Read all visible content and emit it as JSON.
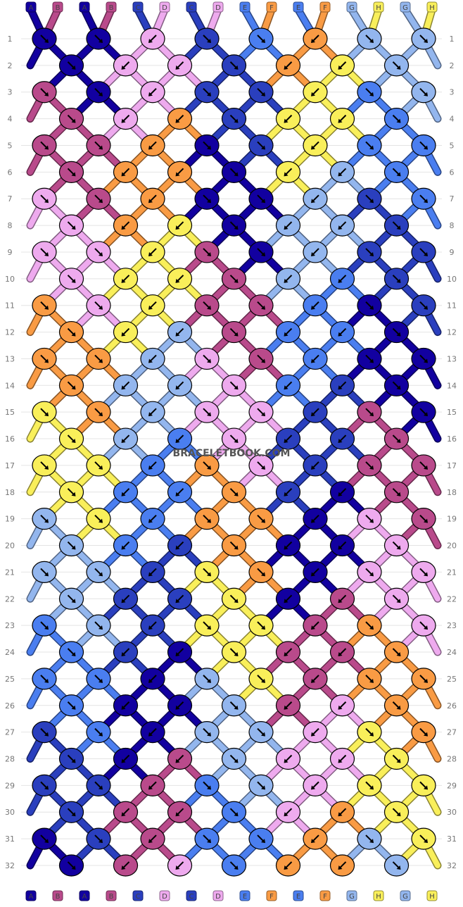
{
  "watermark": "BRACELETBOOK.COM",
  "string_ids": [
    "A",
    "B",
    "A",
    "B",
    "C",
    "D",
    "C",
    "D",
    "E",
    "F",
    "E",
    "F",
    "G",
    "H",
    "G",
    "H"
  ],
  "colors": {
    "A": "#1200a0",
    "B": "#b94a8b",
    "C": "#2a3fbe",
    "D": "#eeaaee",
    "E": "#4a7ef0",
    "F": "#f99b44",
    "G": "#93b6ee",
    "H": "#f9ef5a"
  },
  "row_labels": [
    "1",
    "2",
    "3",
    "4",
    "5",
    "6",
    "7",
    "8",
    "9",
    "10",
    "11",
    "12",
    "13",
    "14",
    "15",
    "16",
    "17",
    "18",
    "19",
    "20",
    "21",
    "22",
    "23",
    "24",
    "25",
    "26",
    "27",
    "28",
    "29",
    "30",
    "31",
    "32"
  ],
  "knot_colors": [
    [
      "A",
      "A",
      "D",
      "C",
      "E",
      "F",
      "G",
      "G"
    ],
    [
      "A",
      "D",
      "D",
      "C",
      "F",
      "H",
      "G"
    ],
    [
      "B",
      "A",
      "D",
      "C",
      "C",
      "H",
      "E",
      "G"
    ],
    [
      "B",
      "D",
      "F",
      "C",
      "H",
      "H",
      "E"
    ],
    [
      "B",
      "B",
      "F",
      "A",
      "C",
      "H",
      "E",
      "E"
    ],
    [
      "B",
      "F",
      "F",
      "A",
      "H",
      "G",
      "E"
    ],
    [
      "D",
      "B",
      "F",
      "A",
      "A",
      "G",
      "C",
      "E"
    ],
    [
      "D",
      "F",
      "H",
      "A",
      "G",
      "G",
      "C"
    ],
    [
      "D",
      "D",
      "H",
      "B",
      "A",
      "G",
      "C",
      "C"
    ],
    [
      "D",
      "H",
      "H",
      "B",
      "G",
      "E",
      "C"
    ],
    [
      "F",
      "D",
      "H",
      "B",
      "B",
      "E",
      "A",
      "C"
    ],
    [
      "F",
      "H",
      "G",
      "B",
      "E",
      "E",
      "A"
    ],
    [
      "F",
      "F",
      "G",
      "D",
      "B",
      "E",
      "A",
      "A"
    ],
    [
      "F",
      "G",
      "G",
      "D",
      "E",
      "C",
      "A"
    ],
    [
      "H",
      "F",
      "G",
      "D",
      "D",
      "C",
      "B",
      "A"
    ],
    [
      "H",
      "G",
      "E",
      "D",
      "C",
      "C",
      "B"
    ],
    [
      "H",
      "H",
      "E",
      "F",
      "D",
      "C",
      "B",
      "B"
    ],
    [
      "H",
      "E",
      "E",
      "F",
      "C",
      "A",
      "B"
    ],
    [
      "G",
      "H",
      "E",
      "F",
      "F",
      "A",
      "D",
      "B"
    ],
    [
      "G",
      "E",
      "C",
      "F",
      "A",
      "A",
      "D"
    ],
    [
      "G",
      "G",
      "C",
      "H",
      "F",
      "A",
      "D",
      "D"
    ],
    [
      "G",
      "C",
      "C",
      "H",
      "A",
      "B",
      "D"
    ],
    [
      "E",
      "G",
      "C",
      "H",
      "H",
      "B",
      "F",
      "D"
    ],
    [
      "E",
      "C",
      "A",
      "H",
      "B",
      "B",
      "F"
    ],
    [
      "E",
      "E",
      "A",
      "G",
      "H",
      "B",
      "F",
      "F"
    ],
    [
      "E",
      "A",
      "A",
      "G",
      "B",
      "D",
      "F"
    ],
    [
      "C",
      "E",
      "A",
      "G",
      "G",
      "D",
      "H",
      "F"
    ],
    [
      "C",
      "A",
      "B",
      "G",
      "D",
      "D",
      "H"
    ],
    [
      "C",
      "C",
      "B",
      "E",
      "G",
      "D",
      "H",
      "H"
    ],
    [
      "C",
      "B",
      "B",
      "E",
      "D",
      "F",
      "H"
    ],
    [
      "A",
      "C",
      "B",
      "E",
      "E",
      "F",
      "G",
      "H"
    ],
    [
      "A",
      "B",
      "D",
      "E",
      "F",
      "F",
      "G"
    ]
  ],
  "knot_directions": [
    [
      "fwd",
      "fwd",
      "bwd",
      "fwd",
      "fwd",
      "bwd",
      "fwd",
      "fwd"
    ],
    [
      "fwd",
      "bwd",
      "bwd",
      "fwd",
      "bwd",
      "bwd",
      "fwd"
    ],
    [
      "fwd",
      "fwd",
      "bwd",
      "fwd",
      "fwd",
      "bwd",
      "fwd",
      "fwd"
    ],
    [
      "fwd",
      "bwd",
      "bwd",
      "fwd",
      "bwd",
      "bwd",
      "fwd"
    ],
    [
      "fwd",
      "fwd",
      "bwd",
      "fwd",
      "fwd",
      "bwd",
      "fwd",
      "fwd"
    ],
    [
      "fwd",
      "bwd",
      "bwd",
      "fwd",
      "bwd",
      "bwd",
      "fwd"
    ],
    [
      "fwd",
      "fwd",
      "bwd",
      "fwd",
      "fwd",
      "bwd",
      "fwd",
      "fwd"
    ],
    [
      "fwd",
      "bwd",
      "bwd",
      "fwd",
      "bwd",
      "bwd",
      "fwd"
    ],
    [
      "fwd",
      "fwd",
      "bwd",
      "fwd",
      "fwd",
      "bwd",
      "fwd",
      "fwd"
    ],
    [
      "fwd",
      "bwd",
      "bwd",
      "fwd",
      "bwd",
      "bwd",
      "fwd"
    ],
    [
      "fwd",
      "fwd",
      "bwd",
      "fwd",
      "fwd",
      "bwd",
      "fwd",
      "fwd"
    ],
    [
      "fwd",
      "bwd",
      "bwd",
      "fwd",
      "bwd",
      "bwd",
      "fwd"
    ],
    [
      "fwd",
      "fwd",
      "bwd",
      "fwd",
      "fwd",
      "bwd",
      "fwd",
      "fwd"
    ],
    [
      "fwd",
      "bwd",
      "bwd",
      "fwd",
      "bwd",
      "bwd",
      "fwd"
    ],
    [
      "fwd",
      "fwd",
      "bwd",
      "fwd",
      "fwd",
      "bwd",
      "fwd",
      "fwd"
    ],
    [
      "fwd",
      "bwd",
      "bwd",
      "fwd",
      "bwd",
      "bwd",
      "fwd"
    ],
    [
      "fwd",
      "fwd",
      "bwd",
      "fwd",
      "fwd",
      "bwd",
      "fwd",
      "fwd"
    ],
    [
      "fwd",
      "bwd",
      "bwd",
      "fwd",
      "bwd",
      "bwd",
      "fwd"
    ],
    [
      "fwd",
      "fwd",
      "bwd",
      "fwd",
      "fwd",
      "bwd",
      "fwd",
      "fwd"
    ],
    [
      "fwd",
      "bwd",
      "bwd",
      "fwd",
      "bwd",
      "bwd",
      "fwd"
    ],
    [
      "fwd",
      "fwd",
      "bwd",
      "fwd",
      "fwd",
      "bwd",
      "fwd",
      "fwd"
    ],
    [
      "fwd",
      "bwd",
      "bwd",
      "fwd",
      "bwd",
      "bwd",
      "fwd"
    ],
    [
      "fwd",
      "fwd",
      "bwd",
      "fwd",
      "fwd",
      "bwd",
      "fwd",
      "fwd"
    ],
    [
      "fwd",
      "bwd",
      "bwd",
      "fwd",
      "bwd",
      "bwd",
      "fwd"
    ],
    [
      "fwd",
      "fwd",
      "bwd",
      "fwd",
      "fwd",
      "bwd",
      "fwd",
      "fwd"
    ],
    [
      "fwd",
      "bwd",
      "bwd",
      "fwd",
      "bwd",
      "bwd",
      "fwd"
    ],
    [
      "fwd",
      "fwd",
      "bwd",
      "fwd",
      "fwd",
      "bwd",
      "fwd",
      "fwd"
    ],
    [
      "fwd",
      "bwd",
      "bwd",
      "fwd",
      "bwd",
      "bwd",
      "fwd"
    ],
    [
      "fwd",
      "fwd",
      "bwd",
      "fwd",
      "fwd",
      "bwd",
      "fwd",
      "fwd"
    ],
    [
      "fwd",
      "bwd",
      "bwd",
      "fwd",
      "bwd",
      "bwd",
      "fwd"
    ],
    [
      "fwd",
      "fwd",
      "bwd",
      "fwd",
      "fwd",
      "bwd",
      "fwd",
      "fwd"
    ],
    [
      "fwd",
      "bwd",
      "bwd",
      "fwd",
      "bwd",
      "bwd",
      "fwd"
    ]
  ]
}
